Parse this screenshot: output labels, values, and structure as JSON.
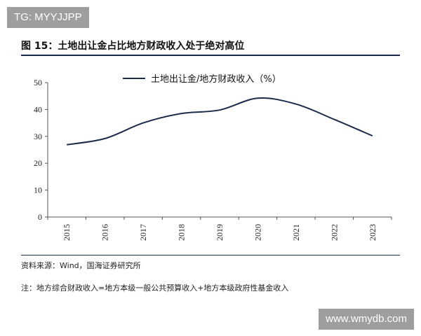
{
  "watermark_top": "TG: MYYJJPP",
  "watermark_bottom": "www.wmydb.com",
  "figure_title": "图 15：土地出让金占比地方财政收入处于绝对高位",
  "source": "资料来源：Wind，国海证券研究所",
  "note": "注：地方综合财政收入=地方本级一般公共预算收入+地方本级政府性基金收入",
  "colors": {
    "line": "#1a2b4a",
    "axis": "#555555",
    "watermark_bg": "#9e9e9e"
  },
  "chart_data": {
    "type": "line",
    "title": "",
    "xlabel": "",
    "ylabel": "",
    "x": [
      "2015",
      "2016",
      "2017",
      "2018",
      "2019",
      "2020",
      "2021",
      "2022",
      "2023"
    ],
    "series": [
      {
        "name": "土地出让金/地方财政收入（%）",
        "values": [
          26.9,
          29.2,
          35.0,
          38.5,
          39.8,
          44.2,
          42.0,
          36.3,
          30.2
        ]
      }
    ],
    "yticks": [
      0,
      10,
      20,
      30,
      40,
      50
    ],
    "ylim": [
      0,
      50
    ],
    "grid": false,
    "legend_position": "top-center"
  }
}
